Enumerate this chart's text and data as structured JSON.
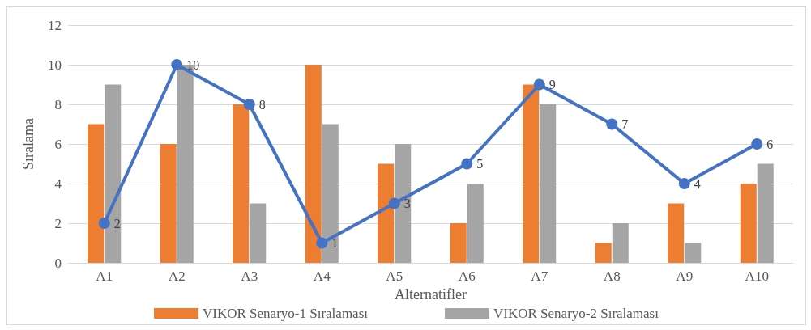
{
  "chart_data": {
    "type": "bar",
    "xlabel": "Alternatifler",
    "ylabel": "Sıralama",
    "categories": [
      "A1",
      "A2",
      "A3",
      "A4",
      "A5",
      "A6",
      "A7",
      "A8",
      "A9",
      "A10"
    ],
    "series": [
      {
        "name": "VIKOR Senaryo-1 Sıralaması",
        "color": "#ed7d31",
        "values": [
          7,
          6,
          8,
          10,
          5,
          2,
          9,
          1,
          3,
          4
        ]
      },
      {
        "name": "VIKOR Senaryo-2 Sıralaması",
        "color": "#a5a5a5",
        "values": [
          9,
          10,
          3,
          7,
          6,
          4,
          8,
          2,
          1,
          5
        ]
      },
      {
        "type": "line",
        "color": "#4472c4",
        "marker": "circle",
        "values": [
          2,
          10,
          8,
          1,
          3,
          5,
          9,
          7,
          4,
          6
        ],
        "value_labels": [
          "2",
          "10",
          "8",
          "1",
          "3",
          "5",
          "9",
          "7",
          "4",
          "6"
        ]
      }
    ],
    "ylim": [
      0,
      12
    ],
    "yticks": [
      0,
      2,
      4,
      6,
      8,
      10,
      12
    ],
    "grid": "y",
    "legend": "bottom"
  }
}
